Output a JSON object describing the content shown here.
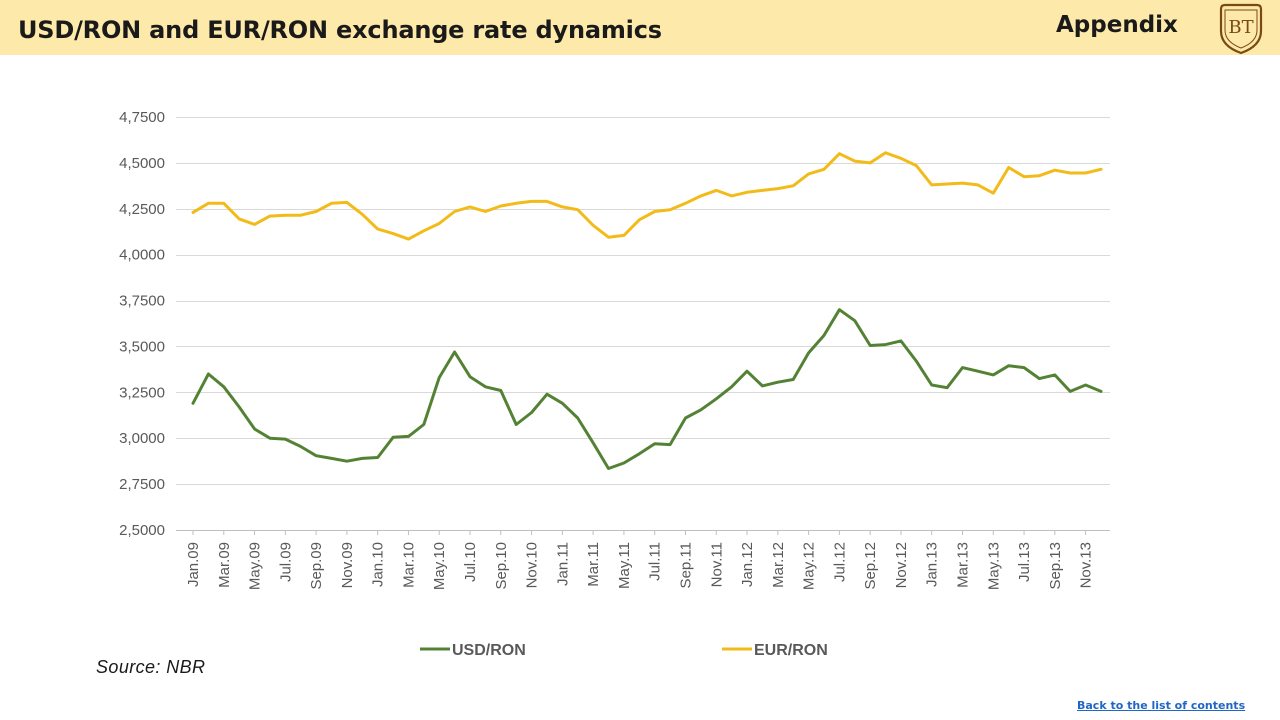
{
  "header": {
    "title": "USD/RON and EUR/RON exchange rate dynamics",
    "section": "Appendix",
    "logo_text": "BT",
    "background_color": "#fde9a9"
  },
  "footer": {
    "source": "Source: NBR",
    "back_link": "Back to the list of contents"
  },
  "chart_data": {
    "type": "line",
    "ylim": [
      2.5,
      4.75
    ],
    "grid": true,
    "legend_position": "bottom",
    "x_tick_labels": [
      "Jan.09",
      "Mar.09",
      "May.09",
      "Jul.09",
      "Sep.09",
      "Nov.09",
      "Jan.10",
      "Mar.10",
      "May.10",
      "Jul.10",
      "Sep.10",
      "Nov.10",
      "Jan.11",
      "Mar.11",
      "May.11",
      "Jul.11",
      "Sep.11",
      "Nov.11",
      "Jan.12",
      "Mar.12",
      "May.12",
      "Jul.12",
      "Sep.12",
      "Nov.12",
      "Jan.13",
      "Mar.13",
      "May.13",
      "Jul.13",
      "Sep.13",
      "Nov.13"
    ],
    "y_tick_labels": [
      "2,5000",
      "2,7500",
      "3,0000",
      "3,2500",
      "3,5000",
      "3,7500",
      "4,0000",
      "4,2500",
      "4,5000",
      "4,7500"
    ],
    "y_ticks": [
      2.5,
      2.75,
      3.0,
      3.25,
      3.5,
      3.75,
      4.0,
      4.25,
      4.5,
      4.75
    ],
    "x": [
      "Jan.09",
      "Feb.09",
      "Mar.09",
      "Apr.09",
      "May.09",
      "Jun.09",
      "Jul.09",
      "Aug.09",
      "Sep.09",
      "Oct.09",
      "Nov.09",
      "Dec.09",
      "Jan.10",
      "Feb.10",
      "Mar.10",
      "Apr.10",
      "May.10",
      "Jun.10",
      "Jul.10",
      "Aug.10",
      "Sep.10",
      "Oct.10",
      "Nov.10",
      "Dec.10",
      "Jan.11",
      "Feb.11",
      "Mar.11",
      "Apr.11",
      "May.11",
      "Jun.11",
      "Jul.11",
      "Aug.11",
      "Sep.11",
      "Oct.11",
      "Nov.11",
      "Dec.11",
      "Jan.12",
      "Feb.12",
      "Mar.12",
      "Apr.12",
      "May.12",
      "Jun.12",
      "Jul.12",
      "Aug.12",
      "Sep.12",
      "Oct.12",
      "Nov.12",
      "Dec.12",
      "Jan.13",
      "Feb.13",
      "Mar.13",
      "Apr.13",
      "May.13",
      "Jun.13",
      "Jul.13",
      "Aug.13",
      "Sep.13",
      "Oct.13",
      "Nov.13",
      "Dec.13"
    ],
    "series": [
      {
        "name": "USD/RON",
        "color": "#548235",
        "values": [
          3.19,
          3.35,
          3.28,
          3.17,
          3.05,
          3.0,
          2.995,
          2.955,
          2.905,
          2.89,
          2.875,
          2.89,
          2.895,
          3.005,
          3.01,
          3.075,
          3.33,
          3.47,
          3.335,
          3.28,
          3.26,
          3.075,
          3.14,
          3.24,
          3.19,
          3.11,
          2.975,
          2.835,
          2.865,
          2.915,
          2.97,
          2.965,
          3.11,
          3.155,
          3.215,
          3.28,
          3.365,
          3.285,
          3.305,
          3.32,
          3.465,
          3.56,
          3.7,
          3.64,
          3.505,
          3.51,
          3.53,
          3.42,
          3.29,
          3.275,
          3.385,
          3.365,
          3.345,
          3.395,
          3.385,
          3.325,
          3.345,
          3.255,
          3.29,
          3.255
        ]
      },
      {
        "name": "EUR/RON",
        "color": "#f2bb1a",
        "values": [
          4.23,
          4.28,
          4.28,
          4.195,
          4.165,
          4.21,
          4.215,
          4.215,
          4.235,
          4.28,
          4.285,
          4.22,
          4.14,
          4.115,
          4.085,
          4.13,
          4.17,
          4.235,
          4.26,
          4.235,
          4.265,
          4.28,
          4.29,
          4.29,
          4.26,
          4.245,
          4.16,
          4.095,
          4.105,
          4.19,
          4.235,
          4.245,
          4.28,
          4.32,
          4.35,
          4.32,
          4.34,
          4.35,
          4.36,
          4.375,
          4.44,
          4.465,
          4.55,
          4.51,
          4.5,
          4.555,
          4.525,
          4.485,
          4.38,
          4.385,
          4.39,
          4.38,
          4.335,
          4.475,
          4.425,
          4.43,
          4.46,
          4.445,
          4.445,
          4.465
        ]
      }
    ]
  }
}
